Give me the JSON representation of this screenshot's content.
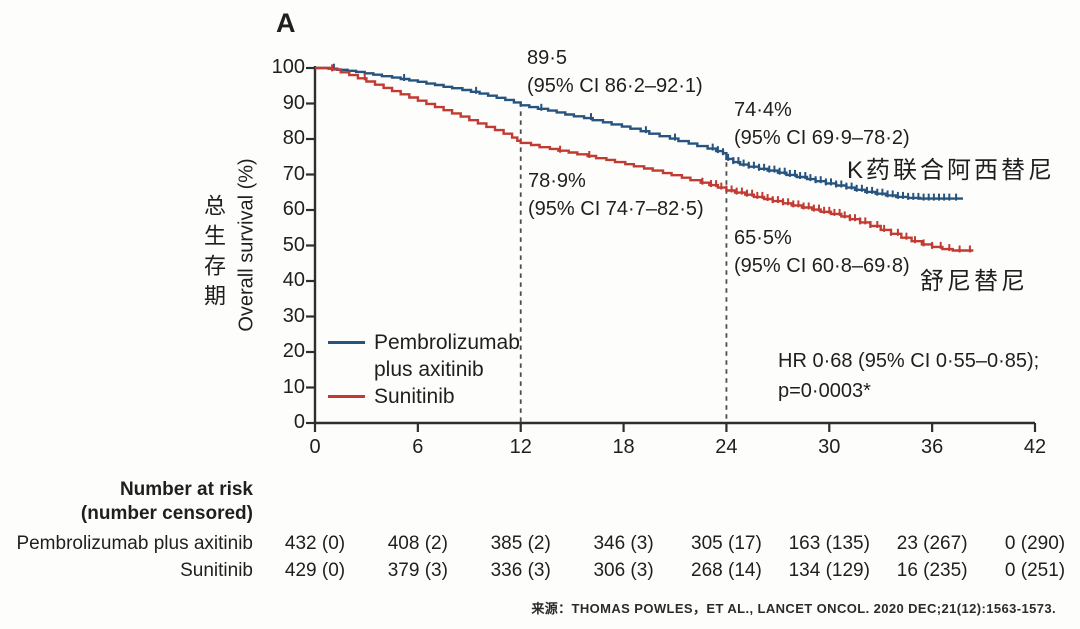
{
  "panel_label": "A",
  "colors": {
    "pembro_blue": "#27547F",
    "sunitinib_red": "#C23B32",
    "axis": "#2e2e2e",
    "dashed_marker": "#4d4d4d",
    "text": "#1f1f1f"
  },
  "y_axis": {
    "label_cn": "总生存期",
    "label_en": "Overall survival (%)"
  },
  "annotations": {
    "pembro_12m": {
      "line1": "89·5",
      "line2": "(95% CI 86·2–92·1)"
    },
    "sunitinib_12m": {
      "line1": "78·9%",
      "line2": "(95% CI 74·7–82·5)"
    },
    "pembro_24m": {
      "line1": "74·4%",
      "line2": "(95% CI 69·9–78·2)"
    },
    "sunitinib_24m": {
      "line1": "65·5%",
      "line2": "(95% CI 60·8–69·8)"
    },
    "hazard_ratio": {
      "line1": "HR 0·68 (95% CI 0·55–0·85);",
      "line2": "p=0·0003*"
    },
    "curve_label_pembro_cn": "K药联合阿西替尼",
    "curve_label_sunitinib_cn": "舒尼替尼"
  },
  "legend": {
    "pembro_line1": "Pembrolizumab",
    "pembro_line2": "plus axitinib",
    "sunitinib": "Sunitinib"
  },
  "chart_data": {
    "type": "line",
    "subtype": "kaplan_meier_step",
    "title": "",
    "xlabel": "",
    "ylabel": "Overall survival (%)",
    "xlim": [
      0,
      42
    ],
    "ylim": [
      0,
      100
    ],
    "x_ticks": [
      0,
      6,
      12,
      18,
      24,
      30,
      36,
      42
    ],
    "y_ticks": [
      100,
      90,
      80,
      70,
      60,
      50,
      40,
      30,
      20,
      10,
      0
    ],
    "grid": false,
    "legend_position": "lower-left",
    "dashed_markers_x": [
      12,
      24
    ],
    "series": [
      {
        "id": "pembrolizumab-axitinib",
        "name": "Pembrolizumab plus axitinib",
        "color": "#27547F",
        "landmark_estimates": {
          "12m": 89.5,
          "24m": 74.4
        },
        "points": [
          [
            0,
            100
          ],
          [
            0.8,
            99.8
          ],
          [
            1.3,
            99.5
          ],
          [
            1.9,
            99.2
          ],
          [
            2.4,
            98.9
          ],
          [
            2.9,
            98.5
          ],
          [
            3.4,
            98.1
          ],
          [
            3.9,
            97.7
          ],
          [
            4.5,
            97.3
          ],
          [
            5,
            96.9
          ],
          [
            5.5,
            96.5
          ],
          [
            6,
            96.1
          ],
          [
            6.5,
            95.6
          ],
          [
            7,
            95.2
          ],
          [
            7.5,
            94.7
          ],
          [
            8,
            94.3
          ],
          [
            8.6,
            93.8
          ],
          [
            9.1,
            93.3
          ],
          [
            9.6,
            92.8
          ],
          [
            10.1,
            92.2
          ],
          [
            10.6,
            91.6
          ],
          [
            11.1,
            91
          ],
          [
            11.6,
            90.3
          ],
          [
            12,
            89.5
          ],
          [
            12.5,
            89
          ],
          [
            13,
            88.5
          ],
          [
            13.6,
            88
          ],
          [
            14.1,
            87.5
          ],
          [
            14.6,
            86.9
          ],
          [
            15.1,
            86.4
          ],
          [
            15.7,
            85.9
          ],
          [
            16.2,
            85.3
          ],
          [
            16.8,
            84.7
          ],
          [
            17.3,
            84.1
          ],
          [
            17.9,
            83.5
          ],
          [
            18.4,
            82.9
          ],
          [
            19,
            82.2
          ],
          [
            19.5,
            81.5
          ],
          [
            20.1,
            80.8
          ],
          [
            20.7,
            80.1
          ],
          [
            21.2,
            79.4
          ],
          [
            21.8,
            78.7
          ],
          [
            22.3,
            78
          ],
          [
            22.9,
            77.3
          ],
          [
            23.4,
            76.6
          ],
          [
            23.8,
            76
          ],
          [
            24,
            74.4
          ],
          [
            24.4,
            73.5
          ],
          [
            24.8,
            72.8
          ],
          [
            25.3,
            72.2
          ],
          [
            25.9,
            71.6
          ],
          [
            26.4,
            71.1
          ],
          [
            27,
            70.5
          ],
          [
            27.5,
            69.9
          ],
          [
            28.1,
            69.3
          ],
          [
            28.7,
            68.7
          ],
          [
            29.2,
            68.1
          ],
          [
            29.8,
            67.5
          ],
          [
            30.4,
            66.9
          ],
          [
            31,
            66.3
          ],
          [
            31.5,
            65.7
          ],
          [
            32.1,
            65.1
          ],
          [
            32.7,
            64.6
          ],
          [
            33.3,
            64.1
          ],
          [
            33.9,
            63.7
          ],
          [
            34.6,
            63.4
          ],
          [
            35.3,
            63.2
          ],
          [
            37.8,
            63.2
          ]
        ],
        "censor_ticks": [
          1.1,
          5.2,
          9.4,
          13.2,
          16.1,
          19.3,
          21.0,
          23.2,
          23.5,
          23.8,
          24.1,
          24.4,
          24.7,
          25.0,
          25.3,
          25.6,
          25.9,
          26.2,
          26.5,
          26.8,
          27.1,
          27.4,
          27.7,
          28.0,
          28.3,
          28.6,
          28.9,
          29.2,
          29.5,
          29.8,
          30.1,
          30.4,
          30.7,
          31.0,
          31.3,
          31.6,
          31.9,
          32.2,
          32.5,
          32.8,
          33.1,
          33.4,
          33.7,
          34.0,
          34.3,
          34.6,
          34.9,
          35.2,
          35.5,
          35.8,
          36.1,
          36.4,
          36.7,
          37.0,
          37.4
        ]
      },
      {
        "id": "sunitinib",
        "name": "Sunitinib",
        "color": "#C23B32",
        "landmark_estimates": {
          "12m": 78.9,
          "24m": 65.5
        },
        "points": [
          [
            0,
            100
          ],
          [
            1,
            99.6
          ],
          [
            1.5,
            98.8
          ],
          [
            2,
            98
          ],
          [
            2.5,
            97.1
          ],
          [
            3,
            96.2
          ],
          [
            3.5,
            95.3
          ],
          [
            4,
            94.4
          ],
          [
            4.5,
            93.5
          ],
          [
            5,
            92.6
          ],
          [
            5.5,
            91.7
          ],
          [
            6,
            90.8
          ],
          [
            6.5,
            89.9
          ],
          [
            7,
            89
          ],
          [
            7.5,
            88.1
          ],
          [
            8,
            87.2
          ],
          [
            8.5,
            86.3
          ],
          [
            9,
            85.3
          ],
          [
            9.5,
            84.4
          ],
          [
            10,
            83.4
          ],
          [
            10.5,
            82.5
          ],
          [
            11,
            81.5
          ],
          [
            11.5,
            80.4
          ],
          [
            11.8,
            79.5
          ],
          [
            12,
            78.9
          ],
          [
            12.6,
            78.3
          ],
          [
            13.1,
            77.7
          ],
          [
            13.7,
            77.2
          ],
          [
            14.2,
            76.7
          ],
          [
            14.8,
            76.2
          ],
          [
            15.3,
            75.7
          ],
          [
            15.9,
            75.2
          ],
          [
            16.4,
            74.6
          ],
          [
            17,
            74.1
          ],
          [
            17.5,
            73.5
          ],
          [
            18.1,
            72.9
          ],
          [
            18.6,
            72.3
          ],
          [
            19.2,
            71.7
          ],
          [
            19.7,
            71.1
          ],
          [
            20.3,
            70.4
          ],
          [
            20.8,
            69.8
          ],
          [
            21.4,
            69.1
          ],
          [
            21.9,
            68.4
          ],
          [
            22.5,
            67.7
          ],
          [
            23,
            67
          ],
          [
            23.5,
            66.3
          ],
          [
            24,
            65.5
          ],
          [
            24.5,
            64.9
          ],
          [
            25.1,
            64.3
          ],
          [
            25.6,
            63.7
          ],
          [
            26.2,
            63.1
          ],
          [
            26.7,
            62.5
          ],
          [
            27.3,
            61.9
          ],
          [
            27.8,
            61.3
          ],
          [
            28.4,
            60.7
          ],
          [
            29,
            60.1
          ],
          [
            29.5,
            59.5
          ],
          [
            30.1,
            58.9
          ],
          [
            30.7,
            58.2
          ],
          [
            31.2,
            57.4
          ],
          [
            31.8,
            56.5
          ],
          [
            32.4,
            55.5
          ],
          [
            33,
            54.4
          ],
          [
            33.6,
            53.3
          ],
          [
            34.2,
            52.2
          ],
          [
            34.8,
            51.2
          ],
          [
            35.4,
            50.3
          ],
          [
            36,
            49.6
          ],
          [
            36.6,
            49
          ],
          [
            37.2,
            48.6
          ],
          [
            38.4,
            48.6
          ]
        ],
        "censor_ticks": [
          1.0,
          2.9,
          14.3,
          16.0,
          22.6,
          23.1,
          23.4,
          23.7,
          24.0,
          24.3,
          24.6,
          24.9,
          25.2,
          25.5,
          25.8,
          26.1,
          26.4,
          26.7,
          27.0,
          27.3,
          27.6,
          27.9,
          28.2,
          28.5,
          28.8,
          29.1,
          29.4,
          29.7,
          30.0,
          30.3,
          30.6,
          30.9,
          31.2,
          31.5,
          31.8,
          32.1,
          32.4,
          32.8,
          33.2,
          33.6,
          34.0,
          34.5,
          35.0,
          35.5,
          36.0,
          36.5,
          37.0,
          37.6,
          38.2
        ]
      }
    ]
  },
  "risk_table": {
    "header_line1": "Number at risk",
    "header_line2": "(number censored)",
    "rows": [
      {
        "label": "Pembrolizumab plus axitinib",
        "values": [
          "432 (0)",
          "408 (2)",
          "385 (2)",
          "346 (3)",
          "305 (17)",
          "163 (135)",
          "23 (267)",
          "0 (290)"
        ]
      },
      {
        "label": "Sunitinib",
        "values": [
          "429 (0)",
          "379 (3)",
          "336 (3)",
          "306 (3)",
          "268 (14)",
          "134 (129)",
          "16 (235)",
          "0 (251)"
        ]
      }
    ]
  },
  "source": "来源：THOMAS POWLES，ET AL., LANCET ONCOL. 2020 DEC;21(12):1563-1573."
}
